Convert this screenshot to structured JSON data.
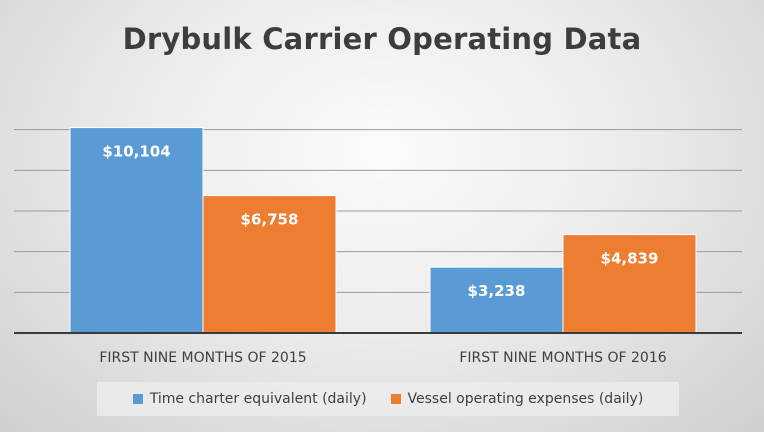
{
  "chart_data": {
    "type": "bar",
    "title": "Drybulk Carrier Operating Data",
    "categories": [
      "FIRST NINE MONTHS OF 2015",
      "FIRST NINE MONTHS OF 2016"
    ],
    "series": [
      {
        "name": "Time charter equivalent (daily)",
        "color": "#5b9bd5",
        "values": [
          10104,
          3238
        ],
        "labels": [
          "$10,104",
          "$3,238"
        ]
      },
      {
        "name": "Vessel operating expenses (daily)",
        "color": "#ed7d31",
        "values": [
          6758,
          4839
        ],
        "labels": [
          "$6,758",
          "$4,839"
        ]
      }
    ],
    "ylim": [
      0,
      12000
    ],
    "gridlines": [
      2000,
      4000,
      6000,
      8000,
      10000
    ],
    "grid": true,
    "legend_position": "bottom",
    "xlabel": "",
    "ylabel": ""
  }
}
